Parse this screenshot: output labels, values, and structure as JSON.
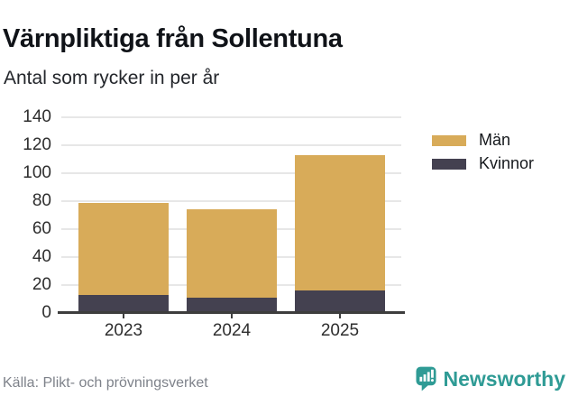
{
  "chart_data": {
    "type": "bar",
    "stacked": true,
    "title": "Värnpliktiga från Sollentuna",
    "subtitle": "Antal som rycker in per år",
    "categories": [
      "2023",
      "2024",
      "2025"
    ],
    "series": [
      {
        "name": "Män",
        "color": "#d8ab59",
        "values": [
          66,
          63,
          97
        ]
      },
      {
        "name": "Kvinnor",
        "color": "#444150",
        "values": [
          13,
          11,
          16
        ]
      }
    ],
    "stack_order": "Kvinnor bottom, Män top",
    "stack_totals": [
      79,
      74,
      113
    ],
    "ylim": [
      0,
      140
    ],
    "yticks": [
      0,
      20,
      40,
      60,
      80,
      100,
      120,
      140
    ],
    "grid": true,
    "legend_position": "right",
    "source": "Källa: Plikt- och prövningsverket"
  },
  "footer": {
    "brand": "Newsworthy"
  },
  "colors": {
    "men": "#d8ab59",
    "women": "#444150",
    "brand_teal": "#2f9b95",
    "grid": "#e7e7e7",
    "axis": "#3d3d3d",
    "tick_text": "#2e2e2e",
    "source_text": "#7e828a"
  }
}
